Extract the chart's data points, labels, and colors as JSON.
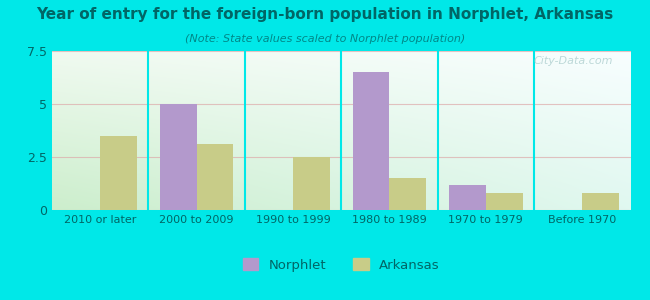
{
  "categories": [
    "2010 or later",
    "2000 to 2009",
    "1990 to 1999",
    "1980 to 1989",
    "1970 to 1979",
    "Before 1970"
  ],
  "norphlet_values": [
    0,
    5.0,
    0,
    6.5,
    1.2,
    0
  ],
  "arkansas_values": [
    3.5,
    3.1,
    2.5,
    1.5,
    0.8,
    0.8
  ],
  "norphlet_color": "#b399cc",
  "arkansas_color": "#c8cc88",
  "title": "Year of entry for the foreign-born population in Norphlet, Arkansas",
  "subtitle": "(Note: State values scaled to Norphlet population)",
  "ylim": [
    0,
    7.5
  ],
  "yticks": [
    0,
    2.5,
    5,
    7.5
  ],
  "background_outer": "#00e8e8",
  "background_inner_tl": "#f0faf0",
  "background_inner_tr": "#f8feff",
  "background_inner_bl": "#d8eedc",
  "background_inner_br": "#eaf8f8",
  "title_color": "#006666",
  "subtitle_color": "#008888",
  "tick_color": "#006666",
  "watermark": "City-Data.com",
  "legend_norphlet": "Norphlet",
  "legend_arkansas": "Arkansas",
  "bar_width": 0.38
}
